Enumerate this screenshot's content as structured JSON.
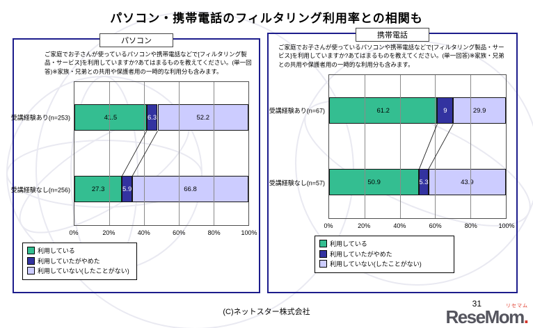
{
  "page": {
    "title": "パソコン・携帯電話のフィルタリング利用率との相関も",
    "copyright": "(C)ネットスター株式会社",
    "page_number": "31",
    "logo": {
      "main": "ReseMom",
      "dot": ".",
      "ruby": "リセマム"
    }
  },
  "colors": {
    "series": [
      "#34BE91",
      "#3333A0",
      "#CCCCFF"
    ],
    "series_text": [
      "#000000",
      "#ffffff",
      "#000000"
    ],
    "panel_border": "#1C1C8C",
    "gridline": "#8A8A8A",
    "logo_gray": "#55555E",
    "logo_red": "#E03A2A"
  },
  "chart_data": [
    {
      "type": "bar",
      "orientation": "horizontal-stacked",
      "title": "パソコン",
      "description": "ご家庭でお子さんが使っているパソコンや携帯電話などで[フィルタリング製品・サービス]を利用していますか?あてはまるものを教えてください。(単一回答)※家族・兄弟との共用や保護者用の一時的な利用分も含みます。",
      "categories": [
        "受講経験あり(n=253)",
        "受講経験なし(n=256)"
      ],
      "series": [
        {
          "name": "利用している",
          "values": [
            41.5,
            27.3
          ],
          "labels": [
            "41.5",
            "27.3"
          ]
        },
        {
          "name": "利用していたがやめた",
          "values": [
            6.3,
            5.9
          ],
          "labels": [
            "6.3",
            "5.9"
          ]
        },
        {
          "name": "利用していない(したことがない)",
          "values": [
            52.2,
            66.8
          ],
          "labels": [
            "52.2",
            "66.8"
          ]
        }
      ],
      "xlim": [
        0,
        100
      ],
      "xticks": [
        "0%",
        "20%",
        "40%",
        "60%",
        "80%",
        "100%"
      ],
      "legend_position": "bottom-left",
      "grid": true
    },
    {
      "type": "bar",
      "orientation": "horizontal-stacked",
      "title": "携帯電話",
      "description": "ご家庭でお子さんが使っているパソコンや携帯電話などで[フィルタリング製品・サービス]を利用していますか?あてはまるものを教えてください。(単一回答)※家族・兄弟との共用や保護者用の一時的な利用分も含みます。",
      "categories": [
        "受講経験あり(n=67)",
        "受講経験なし(n=57)"
      ],
      "series": [
        {
          "name": "利用している",
          "values": [
            61.2,
            50.9
          ],
          "labels": [
            "61.2",
            "50.9"
          ]
        },
        {
          "name": "利用していたがやめた",
          "values": [
            9,
            5.3
          ],
          "labels": [
            "9",
            "5.3"
          ]
        },
        {
          "name": "利用していない(したことがない)",
          "values": [
            29.9,
            43.9
          ],
          "labels": [
            "29.9",
            "43.9"
          ]
        }
      ],
      "xlim": [
        0,
        100
      ],
      "xticks": [
        "0%",
        "20%",
        "40%",
        "60%",
        "80%",
        "100%"
      ],
      "legend_position": "bottom-left",
      "grid": true
    }
  ]
}
